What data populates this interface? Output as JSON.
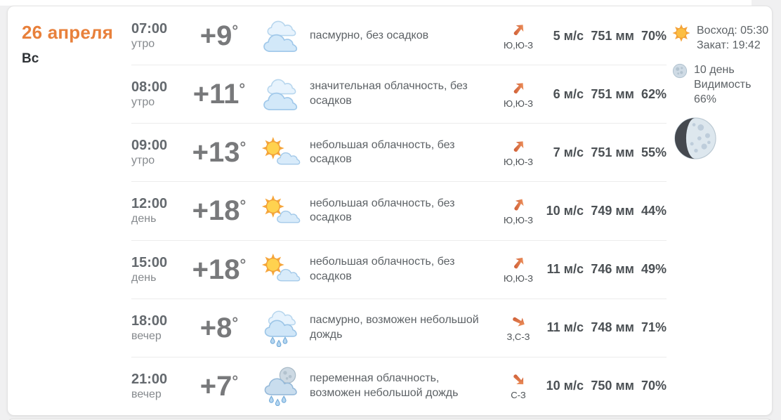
{
  "page": {
    "background": "#f0f0f1",
    "card_background": "#ffffff"
  },
  "colors": {
    "accent_orange": "#E8803B",
    "arrow_color_dark": "#C6502C",
    "arrow_color_light": "#F59E66",
    "text_dark": "#2F3337",
    "text_grey": "#5D6266",
    "value_grey": "#4B5054",
    "divider": "#ECECEC"
  },
  "date_panel": {
    "date": "26 апреля",
    "weekday": "Вс"
  },
  "forecast": {
    "degree_symbol": "°",
    "rows": [
      {
        "time": "07:00",
        "period": "утро",
        "temp": "+9",
        "icon": "cloudy",
        "description": "пасмурно, без осадков",
        "wind_dir": "Ю,Ю-З",
        "arrow_deg": 40,
        "wind_speed": "5 м/с",
        "pressure": "751 мм",
        "humidity": "70%"
      },
      {
        "time": "08:00",
        "period": "утро",
        "temp": "+11",
        "icon": "cloudy",
        "description": "значительная облачность, без осадков",
        "wind_dir": "Ю,Ю-З",
        "arrow_deg": 40,
        "wind_speed": "6 м/с",
        "pressure": "751 мм",
        "humidity": "62%"
      },
      {
        "time": "09:00",
        "period": "утро",
        "temp": "+13",
        "icon": "partly-sunny",
        "description": "небольшая облачность, без осадков",
        "wind_dir": "Ю,Ю-З",
        "arrow_deg": 40,
        "wind_speed": "7 м/с",
        "pressure": "751 мм",
        "humidity": "55%"
      },
      {
        "time": "12:00",
        "period": "день",
        "temp": "+18",
        "icon": "partly-sunny",
        "description": "небольшая облачность, без осадков",
        "wind_dir": "Ю,Ю-З",
        "arrow_deg": 32,
        "wind_speed": "10 м/с",
        "pressure": "749 мм",
        "humidity": "44%"
      },
      {
        "time": "15:00",
        "period": "день",
        "temp": "+18",
        "icon": "partly-sunny",
        "description": "небольшая облачность, без осадков",
        "wind_dir": "Ю,Ю-З",
        "arrow_deg": 36,
        "wind_speed": "11 м/с",
        "pressure": "746 мм",
        "humidity": "49%"
      },
      {
        "time": "18:00",
        "period": "вечер",
        "temp": "+8",
        "icon": "rain",
        "description": "пасмурно, возможен небольшой дождь",
        "wind_dir": "З,С-З",
        "arrow_deg": 118,
        "wind_speed": "11 м/с",
        "pressure": "748 мм",
        "humidity": "71%"
      },
      {
        "time": "21:00",
        "period": "вечер",
        "temp": "+7",
        "icon": "night-rain",
        "description": "переменная облачность, возможен небольшой дождь",
        "wind_dir": "С-З",
        "arrow_deg": 135,
        "wind_speed": "10 м/с",
        "pressure": "750 мм",
        "humidity": "70%"
      }
    ]
  },
  "sidebar": {
    "sun_block": {
      "icon": "sun-icon",
      "sunrise": "Восход: 05:30",
      "sunset": "Закат: 19:42"
    },
    "moon_block": {
      "icon": "moon-icon",
      "moon_day": "10 день",
      "visibility_label": "Видимость",
      "visibility_value": "66%"
    },
    "moon_phase": {
      "icon": "waxing-gibbous-moon-icon"
    }
  }
}
